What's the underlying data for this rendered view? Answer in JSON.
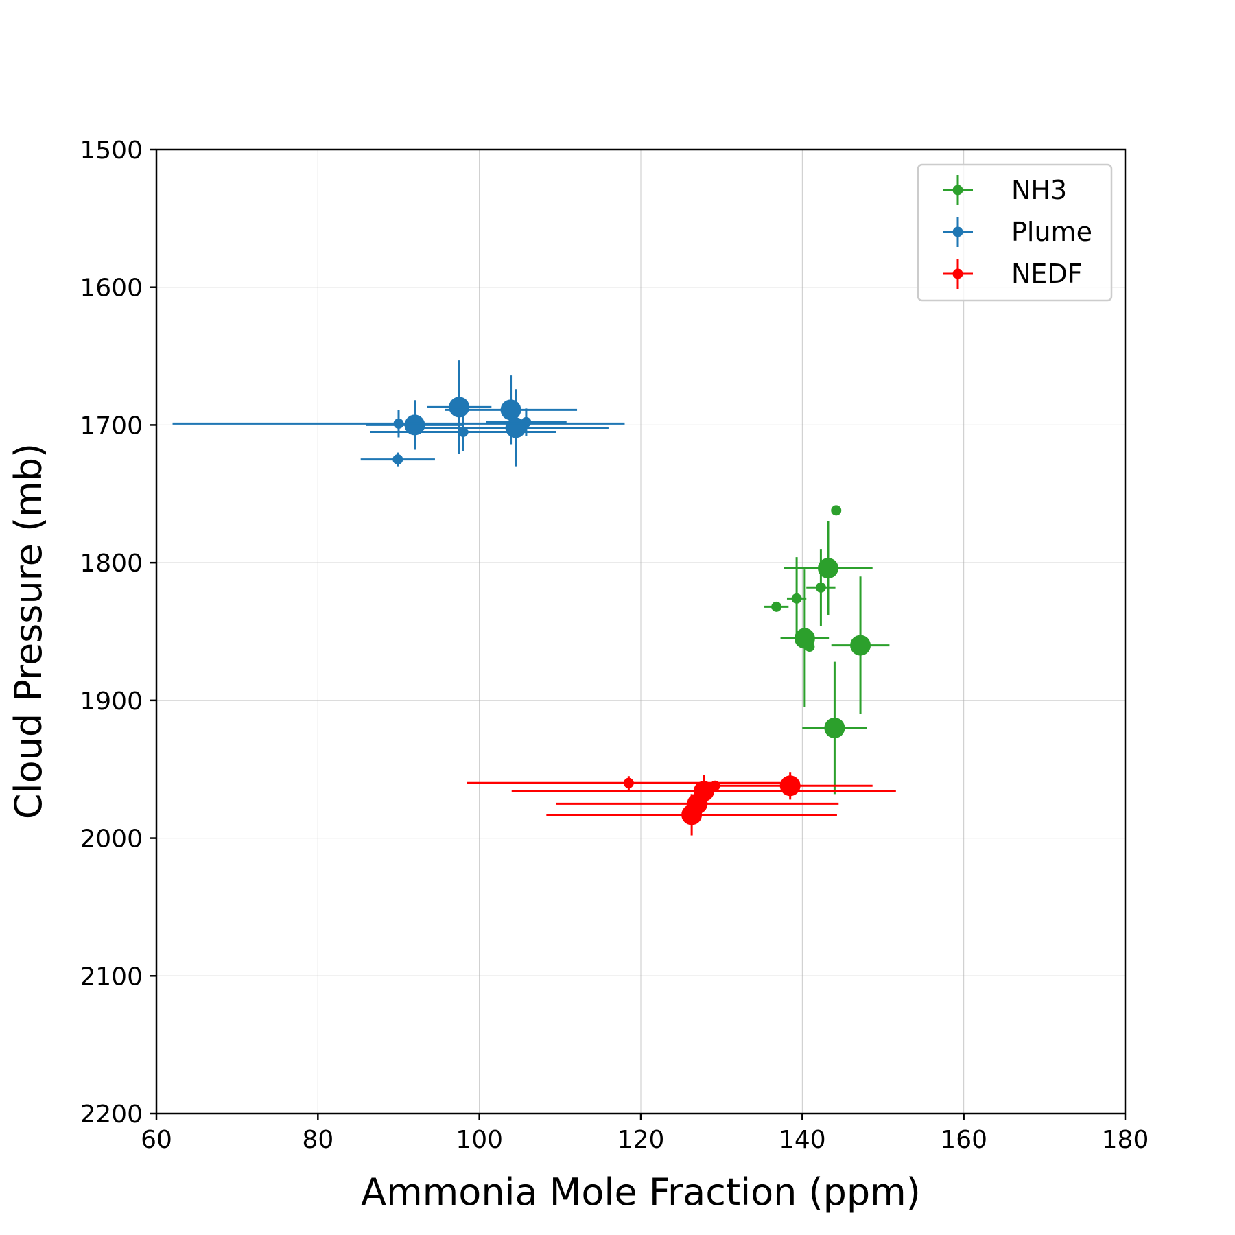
{
  "chart_data": {
    "type": "scatter",
    "xlabel": "Ammonia Mole Fraction (ppm)",
    "ylabel": "Cloud Pressure (mb)",
    "xlim": [
      60,
      180
    ],
    "ylim": [
      1500,
      2200
    ],
    "y_inverted": true,
    "grid": true,
    "legend_position": "top-right",
    "x_ticks": [
      "60",
      "80",
      "100",
      "120",
      "140",
      "160",
      "180"
    ],
    "y_ticks": [
      "1500",
      "1600",
      "1700",
      "1800",
      "1900",
      "2000",
      "2100",
      "2200"
    ],
    "series": [
      {
        "name": "NH3",
        "color": "#2ca02c",
        "points": [
          {
            "x": 144.2,
            "y": 1762,
            "xerr": 0,
            "yerr": 0,
            "size": "small"
          },
          {
            "x": 143.2,
            "y": 1804,
            "xerr": 5.5,
            "yerr": 34,
            "size": "large"
          },
          {
            "x": 142.3,
            "y": 1818,
            "xerr": 1.8,
            "yerr": 28,
            "size": "small"
          },
          {
            "x": 139.3,
            "y": 1826,
            "xerr": 1.2,
            "yerr": 30,
            "size": "small"
          },
          {
            "x": 136.8,
            "y": 1832,
            "xerr": 1.5,
            "yerr": 0,
            "size": "small"
          },
          {
            "x": 140.3,
            "y": 1855,
            "xerr": 3.0,
            "yerr": 50,
            "size": "large"
          },
          {
            "x": 140.9,
            "y": 1861,
            "xerr": 0,
            "yerr": 0,
            "size": "small"
          },
          {
            "x": 147.2,
            "y": 1860,
            "xerr": 3.6,
            "yerr": 50,
            "size": "large"
          },
          {
            "x": 144.0,
            "y": 1920,
            "xerr": 4.0,
            "yerr": 48,
            "size": "large"
          }
        ]
      },
      {
        "name": "Plume",
        "color": "#1f77b4",
        "points": [
          {
            "x": 97.5,
            "y": 1687,
            "xerr": 4.0,
            "yerr": 34,
            "size": "large"
          },
          {
            "x": 103.9,
            "y": 1689,
            "xerr": 8.2,
            "yerr": 25,
            "size": "large"
          },
          {
            "x": 92.0,
            "y": 1700,
            "xerr": 6.0,
            "yerr": 18,
            "size": "large"
          },
          {
            "x": 104.5,
            "y": 1702,
            "xerr": 11.5,
            "yerr": 28,
            "size": "large"
          },
          {
            "x": 105.8,
            "y": 1698,
            "xerr": 5.0,
            "yerr": 10,
            "size": "small"
          },
          {
            "x": 98.0,
            "y": 1705,
            "xerr": 11.5,
            "yerr": 14,
            "size": "small"
          },
          {
            "x": 90.0,
            "y": 1699,
            "xerr": 28,
            "yerr": 10,
            "size": "small"
          },
          {
            "x": 89.9,
            "y": 1725,
            "xerr": 4.6,
            "yerr": 5,
            "size": "small"
          }
        ]
      },
      {
        "name": "NEDF",
        "color": "#ff0000",
        "points": [
          {
            "x": 118.5,
            "y": 1960,
            "xerr": 20,
            "yerr": 5,
            "size": "small"
          },
          {
            "x": 138.5,
            "y": 1962,
            "xerr": 10.2,
            "yerr": 10,
            "size": "large"
          },
          {
            "x": 129.2,
            "y": 1962,
            "xerr": 0,
            "yerr": 0,
            "size": "small"
          },
          {
            "x": 127.8,
            "y": 1966,
            "xerr": 23.8,
            "yerr": 12,
            "size": "large"
          },
          {
            "x": 127.0,
            "y": 1975,
            "xerr": 17.5,
            "yerr": 8,
            "size": "large"
          },
          {
            "x": 126.3,
            "y": 1983,
            "xerr": 18,
            "yerr": 15,
            "size": "large"
          }
        ]
      }
    ]
  }
}
